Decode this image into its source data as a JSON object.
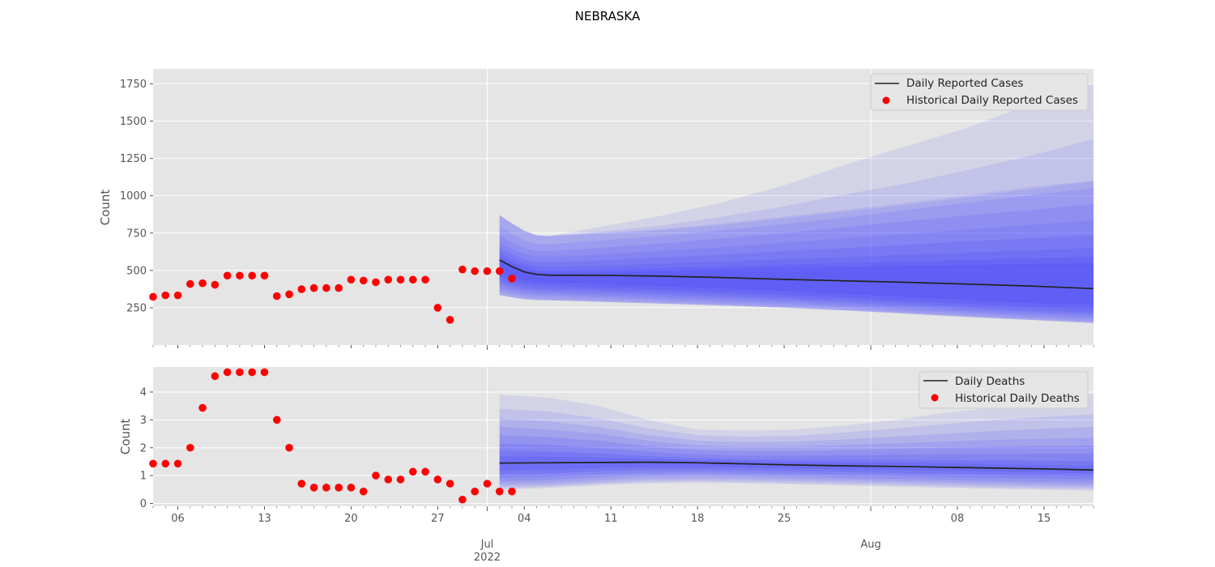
{
  "figure": {
    "title": "NEBRASKA"
  },
  "colors": {
    "background": "#e5e5e5",
    "grid": "#ffffff",
    "median": "#222222",
    "historical": "#ff0000",
    "band": "#3b3bff"
  },
  "x_axis": {
    "start": "2022-06-04",
    "end": "2022-08-19",
    "minor_ticks": [
      "06",
      "13",
      "20",
      "27",
      "04",
      "11",
      "18",
      "25",
      "08",
      "15"
    ],
    "minor_tick_dates": [
      "2022-06-06",
      "2022-06-13",
      "2022-06-20",
      "2022-06-27",
      "2022-07-04",
      "2022-07-11",
      "2022-07-18",
      "2022-07-25",
      "2022-08-08",
      "2022-08-15"
    ],
    "major_ticks": [
      {
        "date": "2022-07-01",
        "label": "Jul",
        "sublabel": "2022"
      },
      {
        "date": "2022-08-01",
        "label": "Aug",
        "sublabel": ""
      }
    ]
  },
  "chart_data": [
    {
      "type": "line",
      "ylabel": "Count",
      "ylim": [
        0,
        1850
      ],
      "yticks": [
        250,
        500,
        750,
        1000,
        1250,
        1500,
        1750
      ],
      "grid": true,
      "legend_placement": "top-right",
      "legend": [
        "Daily Reported Cases",
        "Historical Daily Reported Cases"
      ],
      "historical": {
        "name": "Historical Daily Reported Cases",
        "x": [
          "2022-06-04",
          "2022-06-05",
          "2022-06-06",
          "2022-06-07",
          "2022-06-08",
          "2022-06-09",
          "2022-06-10",
          "2022-06-11",
          "2022-06-12",
          "2022-06-13",
          "2022-06-14",
          "2022-06-15",
          "2022-06-16",
          "2022-06-17",
          "2022-06-18",
          "2022-06-19",
          "2022-06-20",
          "2022-06-21",
          "2022-06-22",
          "2022-06-23",
          "2022-06-24",
          "2022-06-25",
          "2022-06-26",
          "2022-06-27",
          "2022-06-28",
          "2022-06-29",
          "2022-06-30",
          "2022-07-01",
          "2022-07-02",
          "2022-07-03"
        ],
        "y": [
          323,
          333,
          333,
          409,
          414,
          404,
          465,
          465,
          465,
          465,
          328,
          340,
          374,
          382,
          382,
          382,
          438,
          432,
          421,
          438,
          438,
          438,
          438,
          250,
          169,
          506,
          495,
          495,
          495,
          445
        ]
      },
      "forecast": {
        "name": "Daily Reported Cases",
        "x": [
          "2022-07-02",
          "2022-07-03",
          "2022-07-04",
          "2022-07-05",
          "2022-07-06",
          "2022-07-10",
          "2022-07-15",
          "2022-07-20",
          "2022-07-25",
          "2022-07-30",
          "2022-08-04",
          "2022-08-09",
          "2022-08-14",
          "2022-08-19"
        ],
        "median": [
          570,
          525,
          490,
          473,
          468,
          467,
          462,
          452,
          440,
          430,
          420,
          408,
          395,
          378
        ],
        "bands": [
          {
            "lower": [
              335,
              320,
              308,
              302,
              300,
              290,
              278,
              265,
              250,
              232,
              210,
              188,
              168,
              148
            ],
            "upper": [
              870,
              815,
              765,
              735,
              730,
              750,
              775,
              815,
              860,
              905,
              955,
              1005,
              1060,
              1100
            ]
          },
          {
            "lower": [
              355,
              338,
              325,
              318,
              315,
              303,
              290,
              275,
              260,
              243,
              220,
              198,
              178,
              160
            ],
            "upper": [
              800,
              745,
              700,
              675,
              675,
              700,
              730,
              770,
              810,
              855,
              905,
              955,
              1005,
              1050
            ]
          },
          {
            "lower": [
              375,
              355,
              342,
              335,
              332,
              320,
              305,
              290,
              275,
              256,
              234,
              212,
              192,
              175
            ],
            "upper": [
              740,
              690,
              650,
              630,
              630,
              650,
              680,
              715,
              750,
              790,
              830,
              870,
              905,
              945
            ]
          },
          {
            "lower": [
              395,
              373,
              358,
              350,
              348,
              336,
              321,
              305,
              290,
              270,
              248,
              226,
              206,
              190
            ],
            "upper": [
              690,
              645,
              610,
              590,
              590,
              605,
              630,
              655,
              685,
              715,
              745,
              775,
              805,
              835
            ]
          },
          {
            "lower": [
              415,
              392,
              375,
              366,
              364,
              352,
              337,
              321,
              305,
              285,
              263,
              241,
              221,
              205
            ],
            "upper": [
              650,
              608,
              575,
              556,
              554,
              566,
              585,
              605,
              628,
              650,
              672,
              695,
              715,
              735
            ]
          },
          {
            "lower": [
              435,
              410,
              392,
              382,
              380,
              368,
              353,
              337,
              320,
              300,
              278,
              256,
              236,
              220
            ],
            "upper": [
              620,
              578,
              545,
              526,
              522,
              530,
              545,
              560,
              575,
              590,
              605,
              620,
              635,
              650
            ]
          },
          {
            "lower": [
              460,
              432,
              413,
              402,
              398,
              386,
              371,
              355,
              338,
              318,
              296,
              275,
              255,
              240
            ],
            "upper": [
              595,
              555,
              522,
              502,
              498,
              504,
              515,
              526,
              538,
              548,
              560,
              570,
              580,
              590
            ]
          },
          {
            "lower": [
              490,
              458,
              437,
              425,
              420,
              409,
              394,
              378,
              361,
              342,
              321,
              300,
              281,
              267
            ],
            "upper": [
              580,
              540,
              507,
              487,
              482,
              487,
              497,
              506,
              514,
              522,
              530,
              538,
              545,
              550
            ]
          }
        ],
        "outer_bands": [
          {
            "upper": [
              870,
              815,
              765,
              735,
              730,
              790,
              865,
              955,
              1070,
              1210,
              1335,
              1460,
              1620,
              1750
            ]
          },
          {
            "upper": [
              870,
              815,
              765,
              735,
              730,
              760,
              800,
              860,
              930,
              1010,
              1085,
              1175,
              1270,
              1380
            ]
          },
          {
            "upper": [
              870,
              815,
              765,
              735,
              730,
              745,
              770,
              805,
              850,
              895,
              940,
              990,
              1045,
              1100
            ]
          }
        ]
      }
    },
    {
      "type": "line",
      "ylabel": "Count",
      "ylim": [
        -0.1,
        4.9
      ],
      "yticks": [
        0,
        1,
        2,
        3,
        4
      ],
      "grid": true,
      "legend_placement": "top-right",
      "legend": [
        "Daily Deaths",
        "Historical Daily Deaths"
      ],
      "historical": {
        "name": "Historical Daily Deaths",
        "x": [
          "2022-06-04",
          "2022-06-05",
          "2022-06-06",
          "2022-06-07",
          "2022-06-08",
          "2022-06-09",
          "2022-06-10",
          "2022-06-11",
          "2022-06-12",
          "2022-06-13",
          "2022-06-14",
          "2022-06-15",
          "2022-06-16",
          "2022-06-17",
          "2022-06-18",
          "2022-06-19",
          "2022-06-20",
          "2022-06-21",
          "2022-06-22",
          "2022-06-23",
          "2022-06-24",
          "2022-06-25",
          "2022-06-26",
          "2022-06-27",
          "2022-06-28",
          "2022-06-29",
          "2022-06-30",
          "2022-07-01",
          "2022-07-02",
          "2022-07-03"
        ],
        "y": [
          1.43,
          1.43,
          1.43,
          2.0,
          3.43,
          4.57,
          4.71,
          4.71,
          4.71,
          4.71,
          3.0,
          2.0,
          0.71,
          0.57,
          0.57,
          0.57,
          0.57,
          0.43,
          1.0,
          0.86,
          0.86,
          1.14,
          1.14,
          0.86,
          0.71,
          0.14,
          0.43,
          0.71,
          0.43,
          0.43
        ]
      },
      "forecast": {
        "name": "Daily Deaths",
        "x": [
          "2022-07-02",
          "2022-07-06",
          "2022-07-10",
          "2022-07-14",
          "2022-07-18",
          "2022-07-22",
          "2022-07-26",
          "2022-07-30",
          "2022-08-03",
          "2022-08-07",
          "2022-08-11",
          "2022-08-15",
          "2022-08-19"
        ],
        "median": [
          1.45,
          1.46,
          1.47,
          1.48,
          1.46,
          1.42,
          1.38,
          1.35,
          1.33,
          1.3,
          1.27,
          1.24,
          1.2
        ],
        "bands": [
          {
            "lower": [
              0.5,
              0.55,
              0.65,
              0.72,
              0.74,
              0.72,
              0.68,
              0.64,
              0.6,
              0.56,
              0.52,
              0.49,
              0.46
            ],
            "upper": [
              3.9,
              3.8,
              3.5,
              3.0,
              2.65,
              2.62,
              2.65,
              2.8,
              3.0,
              3.25,
              3.45,
              3.65,
              3.95
            ]
          },
          {
            "lower": [
              0.55,
              0.6,
              0.7,
              0.77,
              0.79,
              0.77,
              0.73,
              0.69,
              0.65,
              0.61,
              0.57,
              0.54,
              0.51
            ],
            "upper": [
              3.4,
              3.3,
              3.05,
              2.7,
              2.45,
              2.4,
              2.43,
              2.55,
              2.7,
              2.85,
              3.0,
              3.1,
              3.2
            ]
          },
          {
            "lower": [
              0.62,
              0.66,
              0.76,
              0.84,
              0.86,
              0.84,
              0.8,
              0.76,
              0.72,
              0.68,
              0.64,
              0.61,
              0.58
            ],
            "upper": [
              3.05,
              2.95,
              2.75,
              2.45,
              2.25,
              2.2,
              2.22,
              2.3,
              2.4,
              2.5,
              2.6,
              2.68,
              2.75
            ]
          },
          {
            "lower": [
              0.7,
              0.74,
              0.84,
              0.92,
              0.94,
              0.92,
              0.88,
              0.84,
              0.8,
              0.76,
              0.72,
              0.69,
              0.66
            ],
            "upper": [
              2.75,
              2.65,
              2.5,
              2.25,
              2.08,
              2.03,
              2.04,
              2.1,
              2.16,
              2.22,
              2.28,
              2.32,
              2.36
            ]
          },
          {
            "lower": [
              0.8,
              0.84,
              0.94,
              1.01,
              1.03,
              1.01,
              0.97,
              0.93,
              0.89,
              0.85,
              0.81,
              0.78,
              0.75
            ],
            "upper": [
              2.45,
              2.38,
              2.25,
              2.05,
              1.92,
              1.88,
              1.88,
              1.92,
              1.96,
              2.0,
              2.04,
              2.06,
              2.08
            ]
          },
          {
            "lower": [
              0.92,
              0.95,
              1.04,
              1.1,
              1.12,
              1.1,
              1.06,
              1.02,
              0.99,
              0.95,
              0.92,
              0.89,
              0.86
            ],
            "upper": [
              2.15,
              2.1,
              2.0,
              1.86,
              1.76,
              1.72,
              1.71,
              1.73,
              1.75,
              1.76,
              1.78,
              1.79,
              1.79
            ]
          },
          {
            "lower": [
              1.05,
              1.08,
              1.15,
              1.2,
              1.21,
              1.19,
              1.15,
              1.12,
              1.09,
              1.06,
              1.03,
              1.0,
              0.97
            ],
            "upper": [
              1.9,
              1.86,
              1.8,
              1.7,
              1.63,
              1.59,
              1.57,
              1.57,
              1.57,
              1.56,
              1.55,
              1.54,
              1.52
            ]
          },
          {
            "lower": [
              1.2,
              1.22,
              1.27,
              1.31,
              1.31,
              1.28,
              1.25,
              1.22,
              1.2,
              1.17,
              1.14,
              1.11,
              1.08
            ],
            "upper": [
              1.7,
              1.68,
              1.65,
              1.6,
              1.56,
              1.52,
              1.49,
              1.47,
              1.46,
              1.44,
              1.41,
              1.38,
              1.35
            ]
          }
        ],
        "outer_bands": []
      }
    }
  ]
}
